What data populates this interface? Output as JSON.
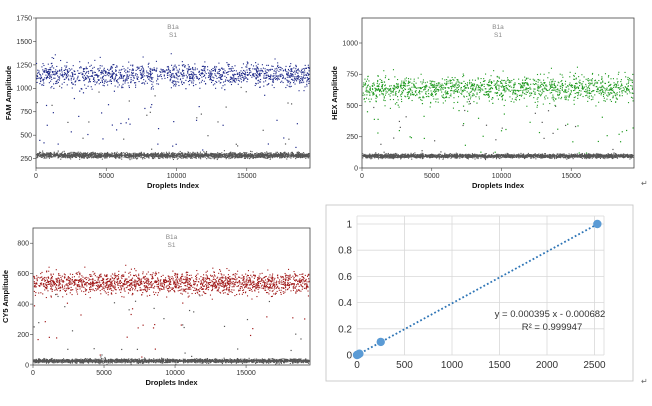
{
  "chart_data": [
    {
      "type": "scatter",
      "name": "fam",
      "title_line1": "B1a",
      "title_line2": "S1",
      "xlabel": "Droplets Index",
      "ylabel": "FAM Amplitude",
      "xlim": [
        0,
        19500
      ],
      "ylim": [
        150,
        1750
      ],
      "xticks": [
        0,
        5000,
        10000,
        15000
      ],
      "yticks": [
        250,
        500,
        750,
        1000,
        1250,
        1500,
        1750
      ],
      "clusters": [
        {
          "label": "positive",
          "center": 1150,
          "spread": 60,
          "count": 1400,
          "color": "#1f2a8a"
        },
        {
          "label": "negative",
          "center": 290,
          "spread": 14,
          "count": 2600,
          "color": "#555555"
        }
      ],
      "scattered_points": 70
    },
    {
      "type": "scatter",
      "name": "hex",
      "title_line1": "B1a",
      "title_line2": "S1",
      "xlabel": "Droplets Index",
      "ylabel": "HEX Amplitude",
      "xlim": [
        0,
        19500
      ],
      "ylim": [
        0,
        1200
      ],
      "xticks": [
        0,
        5000,
        10000,
        15000
      ],
      "yticks": [
        0,
        250,
        500,
        750,
        1000
      ],
      "clusters": [
        {
          "label": "positive",
          "center": 640,
          "spread": 50,
          "count": 1400,
          "color": "#1f9a1f"
        },
        {
          "label": "negative",
          "center": 100,
          "spread": 8,
          "count": 2600,
          "color": "#555555"
        }
      ],
      "scattered_points": 70
    },
    {
      "type": "scatter",
      "name": "cy5",
      "title_line1": "B1a",
      "title_line2": "S1",
      "xlabel": "Droplets Index",
      "ylabel": "CY5 Amplitude",
      "xlim": [
        0,
        19500
      ],
      "ylim": [
        0,
        900
      ],
      "xticks": [
        0,
        5000,
        10000,
        15000
      ],
      "yticks": [
        0,
        200,
        400,
        600,
        800
      ],
      "clusters": [
        {
          "label": "positive",
          "center": 540,
          "spread": 35,
          "count": 1800,
          "color": "#a01818"
        },
        {
          "label": "negative",
          "center": 30,
          "spread": 6,
          "count": 2600,
          "color": "#555555"
        }
      ],
      "scattered_points": 55
    },
    {
      "type": "scatter",
      "name": "regression",
      "xlim": [
        0,
        2600
      ],
      "ylim": [
        0,
        1.1
      ],
      "xticks": [
        0,
        500,
        1000,
        1500,
        2000,
        2500
      ],
      "yticks": [
        0,
        0.2,
        0.4,
        0.6,
        0.8,
        1
      ],
      "points": [
        {
          "x": 0,
          "y": 0.0
        },
        {
          "x": 10,
          "y": 0.003
        },
        {
          "x": 25,
          "y": 0.01
        },
        {
          "x": 250,
          "y": 0.1
        },
        {
          "x": 2530,
          "y": 1.0
        }
      ],
      "trendline": {
        "slope": 0.000395,
        "intercept": -0.000682,
        "style": "dotted"
      },
      "equation": "y = 0.000395 x - 0.000682",
      "r_squared": "R² = 0.999947",
      "point_color": "#5b9bd5",
      "line_color": "#2e75b6"
    }
  ],
  "return_mark": "↵"
}
